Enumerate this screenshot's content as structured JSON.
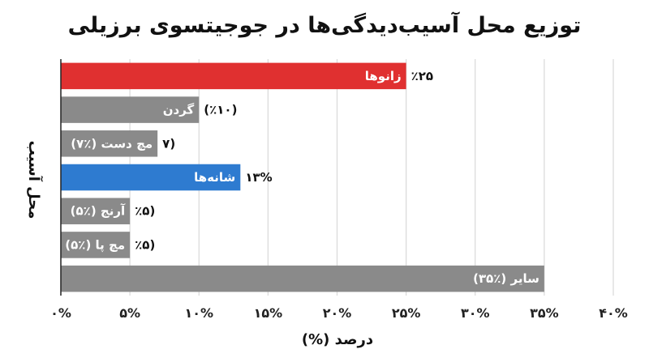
{
  "chart_data": {
    "type": "bar",
    "orientation": "horizontal",
    "title": "توزیع محل آسیب‌دیدگی‌ها در جوجیتسوی برزیلی",
    "xlabel": "درصد (%)",
    "ylabel": "محل آسیب",
    "xlim": [
      0,
      40
    ],
    "x_ticks": [
      0,
      5,
      10,
      15,
      20,
      25,
      30,
      35,
      40
    ],
    "x_tick_labels": [
      "۰%",
      "۵%",
      "۱۰%",
      "۱۵%",
      "۲۰%",
      "۲۵%",
      "۳۰%",
      "۳۵%",
      "۴۰%"
    ],
    "grid": true,
    "bars": [
      {
        "value": 25,
        "color": "#e03030",
        "inside_label": "زانوها",
        "outside_label": "٪۲۵"
      },
      {
        "value": 10,
        "color": "#8a8a8a",
        "inside_label": "گردن",
        "outside_label": "(٪۱۰)"
      },
      {
        "value": 7,
        "color": "#8a8a8a",
        "inside_label": "مچ دست (٪۷)",
        "outside_label": "(۷"
      },
      {
        "value": 13,
        "color": "#2e7bd0",
        "inside_label": "شانه‌ها",
        "outside_label": "۱۳%"
      },
      {
        "value": 5,
        "color": "#8a8a8a",
        "inside_label": "آرنج (٪۵)",
        "outside_label": "(٪۵"
      },
      {
        "value": 5,
        "color": "#8a8a8a",
        "inside_label": "مچ پا (٪۵)",
        "outside_label": "(٪۵"
      },
      {
        "value": 35,
        "color": "#8a8a8a",
        "inside_label": "سایر (٪۳۵)",
        "outside_label": ""
      }
    ]
  }
}
